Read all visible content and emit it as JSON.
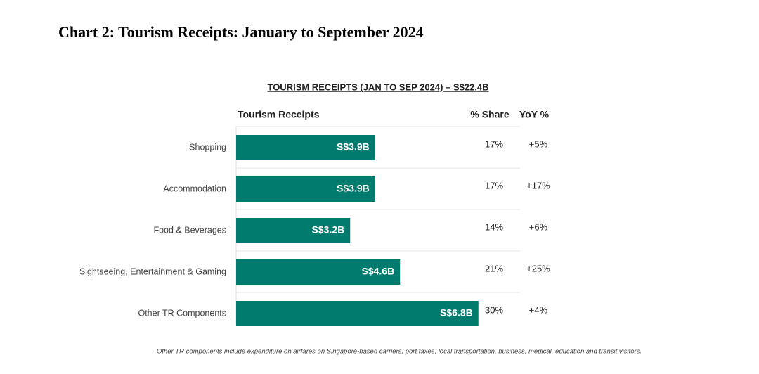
{
  "heading": "Chart 2: Tourism Receipts: January to September 2024",
  "chart_data": {
    "type": "bar",
    "title": "TOURISM RECEIPTS (JAN TO SEP 2024) – S$22.4B",
    "x_label": "Tourism Receipts",
    "categories": [
      "Shopping",
      "Accommodation",
      "Food & Beverages",
      "Sightseeing, Entertainment & Gaming",
      "Other TR Components"
    ],
    "values": [
      3.9,
      3.9,
      3.2,
      4.6,
      6.8
    ],
    "value_labels": [
      "S$3.9B",
      "S$3.9B",
      "S$3.2B",
      "S$4.6B",
      "S$6.8B"
    ],
    "color": "#007b6e",
    "columns": [
      {
        "header": "% Share",
        "values": [
          "17%",
          "17%",
          "14%",
          "21%",
          "30%"
        ]
      },
      {
        "header": "YoY %",
        "values": [
          "+5%",
          "+17%",
          "+6%",
          "+25%",
          "+4%"
        ]
      }
    ],
    "note": "Other TR components include expenditure on airfares on Singapore-based carriers, port taxes, local transportation, business, medical, education and transit visitors."
  }
}
